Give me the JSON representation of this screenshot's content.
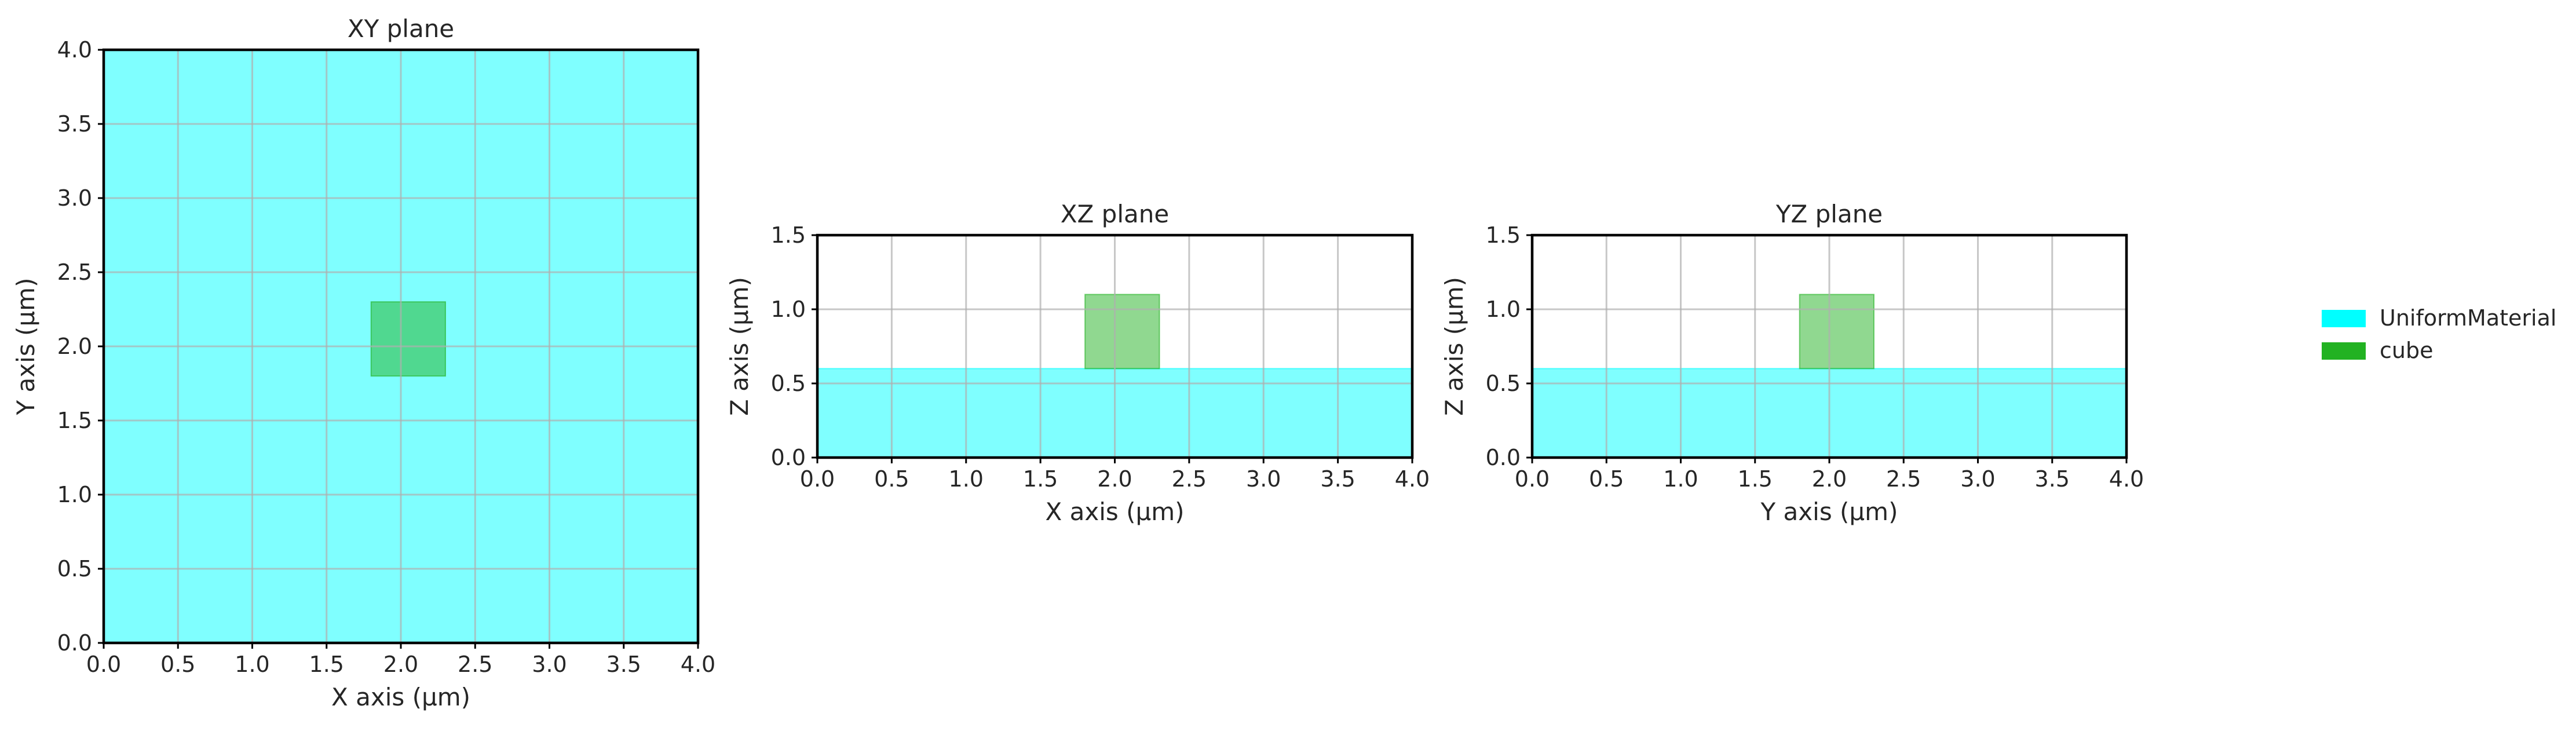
{
  "chart_data": [
    {
      "type": "area",
      "title": "XY plane",
      "xlabel": "X axis (μm)",
      "ylabel": "Y axis (μm)",
      "xlim": [
        0.0,
        4.0
      ],
      "ylim": [
        0.0,
        4.0
      ],
      "xticks": [
        "0.0",
        "0.5",
        "1.0",
        "1.5",
        "2.0",
        "2.5",
        "3.0",
        "3.5",
        "4.0"
      ],
      "yticks": [
        "0.0",
        "0.5",
        "1.0",
        "1.5",
        "2.0",
        "2.5",
        "3.0",
        "3.5",
        "4.0"
      ],
      "grid": true,
      "regions": [
        {
          "name": "UniformMaterial",
          "x": [
            0.0,
            4.0
          ],
          "y": [
            0.0,
            4.0
          ]
        },
        {
          "name": "cube",
          "x": [
            1.8,
            2.3
          ],
          "y": [
            1.8,
            2.3
          ]
        }
      ]
    },
    {
      "type": "area",
      "title": "XZ plane",
      "xlabel": "X axis (μm)",
      "ylabel": "Z axis (μm)",
      "xlim": [
        0.0,
        4.0
      ],
      "ylim": [
        0.0,
        1.5
      ],
      "xticks": [
        "0.0",
        "0.5",
        "1.0",
        "1.5",
        "2.0",
        "2.5",
        "3.0",
        "3.5",
        "4.0"
      ],
      "yticks": [
        "0.0",
        "0.5",
        "1.0",
        "1.5"
      ],
      "grid": true,
      "regions": [
        {
          "name": "UniformMaterial",
          "x": [
            0.0,
            4.0
          ],
          "y": [
            0.0,
            0.6
          ]
        },
        {
          "name": "cube",
          "x": [
            1.8,
            2.3
          ],
          "y": [
            0.6,
            1.1
          ]
        }
      ]
    },
    {
      "type": "area",
      "title": "YZ plane",
      "xlabel": "Y axis (μm)",
      "ylabel": "Z axis (μm)",
      "xlim": [
        0.0,
        4.0
      ],
      "ylim": [
        0.0,
        1.5
      ],
      "xticks": [
        "0.0",
        "0.5",
        "1.0",
        "1.5",
        "2.0",
        "2.5",
        "3.0",
        "3.5",
        "4.0"
      ],
      "yticks": [
        "0.0",
        "0.5",
        "1.0",
        "1.5"
      ],
      "grid": true,
      "regions": [
        {
          "name": "UniformMaterial",
          "x": [
            0.0,
            4.0
          ],
          "y": [
            0.0,
            0.6
          ]
        },
        {
          "name": "cube",
          "x": [
            1.8,
            2.3
          ],
          "y": [
            0.6,
            1.1
          ]
        }
      ]
    }
  ],
  "legend": {
    "placement": "right",
    "items": [
      {
        "label": "UniformMaterial",
        "color": "#00ffff"
      },
      {
        "label": "cube",
        "color": "#22b222"
      }
    ]
  },
  "colors": {
    "UniformMaterial": "#00ffff",
    "cube": "#22b222"
  }
}
